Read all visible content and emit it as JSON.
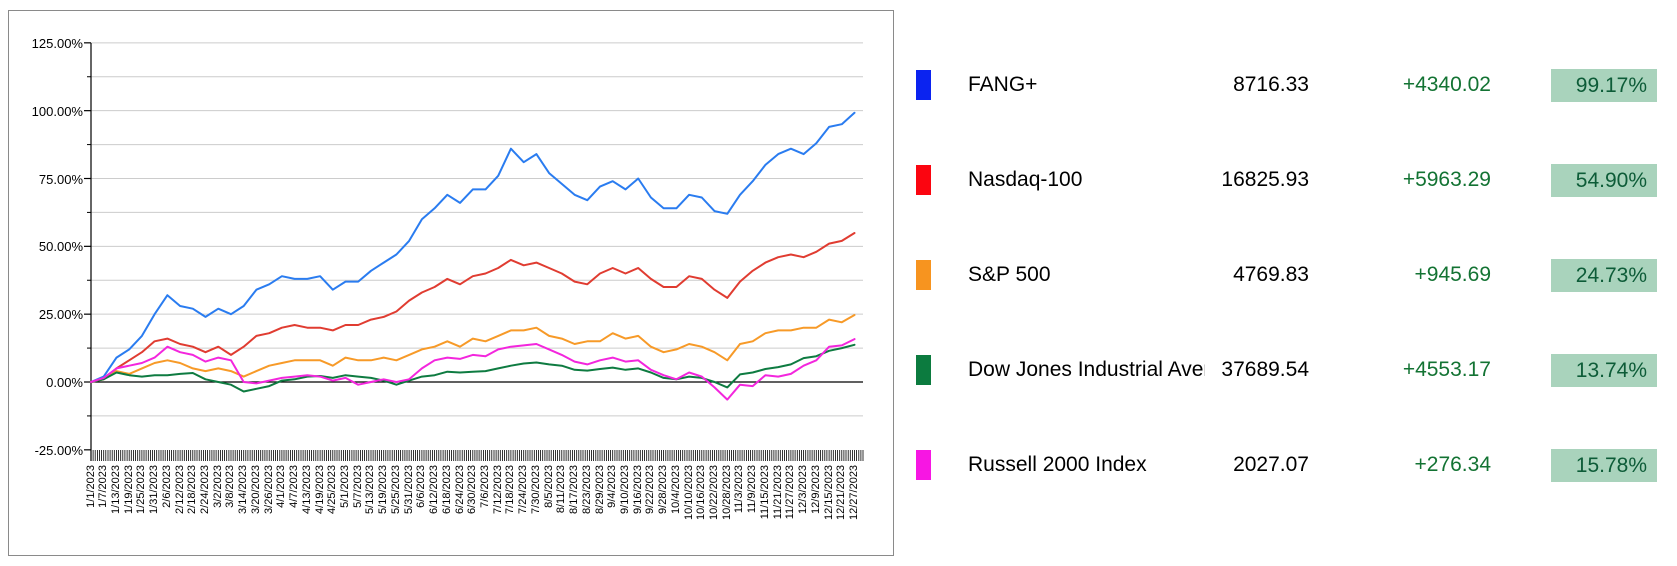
{
  "page": {
    "background": "#ffffff"
  },
  "chart_data": {
    "type": "line",
    "title": "",
    "xlabel": "",
    "ylabel": "",
    "grid": true,
    "legend_position": "right-table",
    "ylim": [
      -25,
      125
    ],
    "y_tick_labels": [
      "125.00%",
      "100.00%",
      "75.00%",
      "50.00%",
      "25.00%",
      "0.00%",
      "-25.00%"
    ],
    "y_tick_values": [
      125,
      100,
      75,
      50,
      25,
      0,
      -25
    ],
    "y_gridline_values": [
      125,
      112.5,
      100,
      87.5,
      75,
      62.5,
      50,
      37.5,
      25,
      12.5,
      -12.5
    ],
    "zero_line_value": 0,
    "days_total": 365,
    "x_tick_interval_days": 6,
    "categories": [
      "1/1/2023",
      "1/7/2023",
      "1/13/2023",
      "1/19/2023",
      "1/25/2023",
      "1/31/2023",
      "2/6/2023",
      "2/12/2023",
      "2/18/2023",
      "2/24/2023",
      "3/2/2023",
      "3/8/2023",
      "3/14/2023",
      "3/20/2023",
      "3/26/2023",
      "4/1/2023",
      "4/7/2023",
      "4/13/2023",
      "4/19/2023",
      "4/25/2023",
      "5/1/2023",
      "5/7/2023",
      "5/13/2023",
      "5/19/2023",
      "5/25/2023",
      "5/31/2023",
      "6/6/2023",
      "6/12/2023",
      "6/18/2023",
      "6/24/2023",
      "6/30/2023",
      "7/6/2023",
      "7/12/2023",
      "7/18/2023",
      "7/24/2023",
      "7/30/2023",
      "8/5/2023",
      "8/11/2023",
      "8/17/2023",
      "8/23/2023",
      "8/29/2023",
      "9/4/2023",
      "9/10/2023",
      "9/16/2023",
      "9/22/2023",
      "9/28/2023",
      "10/4/2023",
      "10/10/2023",
      "10/16/2023",
      "10/22/2023",
      "10/28/2023",
      "11/3/2023",
      "11/9/2023",
      "11/15/2023",
      "11/21/2023",
      "11/27/2023",
      "12/3/2023",
      "12/9/2023",
      "12/15/2023",
      "12/21/2023",
      "12/27/2023"
    ],
    "series": [
      {
        "name": "FANG+",
        "color": "#2a7cf0",
        "swatch": "#0b23f0",
        "values": [
          0,
          2,
          9,
          12,
          17,
          25,
          32,
          28,
          27,
          24,
          27,
          25,
          28,
          34,
          36,
          39,
          38,
          38,
          39,
          34,
          37,
          37,
          41,
          44,
          47,
          52,
          60,
          64,
          69,
          66,
          71,
          71,
          76,
          86,
          81,
          84,
          77,
          73,
          69,
          67,
          72,
          74,
          71,
          75,
          68,
          64,
          64,
          69,
          68,
          63,
          62,
          69,
          74,
          80,
          84,
          86,
          84,
          88,
          94,
          95,
          99.2
        ]
      },
      {
        "name": "Nasdaq-100",
        "color": "#e03c31",
        "swatch": "#fb0510",
        "values": [
          0,
          1,
          5,
          8,
          11,
          15,
          16,
          14,
          13,
          11,
          13,
          10,
          13,
          17,
          18,
          20,
          21,
          20,
          20,
          19,
          21,
          21,
          23,
          24,
          26,
          30,
          33,
          35,
          38,
          36,
          39,
          40,
          42,
          45,
          43,
          44,
          42,
          40,
          37,
          36,
          40,
          42,
          40,
          42,
          38,
          35,
          35,
          39,
          38,
          34,
          31,
          37,
          41,
          44,
          46,
          47,
          46,
          48,
          51,
          52,
          54.9
        ]
      },
      {
        "name": "S&P 500",
        "color": "#f79a28",
        "swatch": "#f7941f",
        "values": [
          0,
          1,
          4,
          3,
          5,
          7,
          8,
          7,
          5,
          4,
          5,
          4,
          2,
          4,
          6,
          7,
          8,
          8,
          8,
          6,
          9,
          8,
          8,
          9,
          8,
          10,
          12,
          13,
          15,
          13,
          16,
          15,
          17,
          19,
          19,
          20,
          17,
          16,
          14,
          15,
          15,
          18,
          16,
          17,
          13,
          11,
          12,
          14,
          13,
          11,
          8,
          14,
          15,
          18,
          19,
          19,
          20,
          20,
          23,
          22,
          24.7
        ]
      },
      {
        "name": "Dow Jones Industrial Average",
        "color": "#0e7b41",
        "swatch": "#0c7b3f",
        "values": [
          0,
          1,
          3.5,
          2.5,
          2,
          2.5,
          2.5,
          3,
          3.3,
          1,
          0,
          -1,
          -3.5,
          -2.5,
          -1.5,
          0.5,
          1,
          2,
          2.2,
          1.5,
          2.5,
          2,
          1.5,
          0.5,
          -1,
          0.5,
          2,
          2.5,
          3.8,
          3.5,
          3.8,
          4,
          5,
          6,
          6.8,
          7.2,
          6.5,
          6,
          4.5,
          4.2,
          4.8,
          5.3,
          4.5,
          5,
          3.5,
          1.5,
          1,
          2,
          1.5,
          0,
          -2,
          2.8,
          3.5,
          4.8,
          5.5,
          6.5,
          8.8,
          9.5,
          11.5,
          12.5,
          13.7
        ]
      },
      {
        "name": "Russell 2000 Index",
        "color": "#f326dd",
        "swatch": "#f716e3",
        "values": [
          0,
          1.5,
          5,
          6,
          7,
          9,
          13,
          11,
          10,
          7.5,
          9,
          8,
          0,
          -0.5,
          0.5,
          1.5,
          2,
          2.5,
          2,
          0.5,
          1.5,
          -1,
          0,
          1,
          0,
          1,
          5,
          8,
          9,
          8.5,
          10,
          9.5,
          12,
          13,
          13.5,
          14,
          12,
          10,
          7.5,
          6.5,
          8,
          9,
          7.5,
          8,
          4.5,
          2.5,
          1,
          3.5,
          2,
          -2,
          -6.5,
          -1,
          -1.5,
          2.5,
          2,
          3,
          6,
          8,
          13,
          13.5,
          15.8
        ]
      }
    ],
    "colors": {
      "grid": "#cccccc",
      "axis": "#000000",
      "zero_line": "#000000",
      "panel_border": "#8a8a8a"
    }
  },
  "legend": {
    "change_color": "#137333",
    "badge_bg": "#a9d3bc",
    "badge_text_color": "#0d5c38",
    "rows": [
      {
        "name": "FANG+",
        "value": "8716.33",
        "change": "+4340.02",
        "pct": "99.17%",
        "color": "#0b23f0"
      },
      {
        "name": "Nasdaq-100",
        "value": "16825.93",
        "change": "+5963.29",
        "pct": "54.90%",
        "color": "#fb0510"
      },
      {
        "name": "S&P 500",
        "value": "4769.83",
        "change": "+945.69",
        "pct": "24.73%",
        "color": "#f7941f"
      },
      {
        "name": "Dow Jones Industrial Average",
        "value": "37689.54",
        "change": "+4553.17",
        "pct": "13.74%",
        "color": "#0c7b3f"
      },
      {
        "name": "Russell 2000 Index",
        "value": "2027.07",
        "change": "+276.34",
        "pct": "15.78%",
        "color": "#f716e3"
      }
    ]
  }
}
